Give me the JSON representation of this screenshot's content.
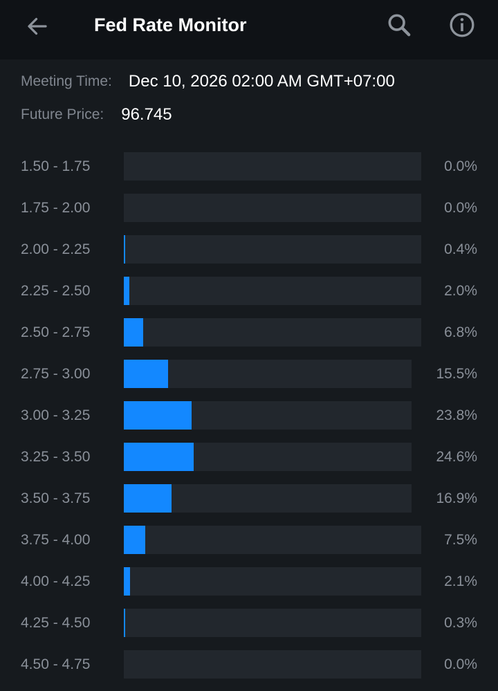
{
  "header": {
    "title": "Fed Rate Monitor",
    "back_icon": "arrow-left-icon",
    "search_icon": "search-icon",
    "info_icon": "info-icon"
  },
  "meeting": {
    "time_label": "Meeting Time:",
    "time_value": "Dec 10, 2026 02:00 AM GMT+07:00",
    "price_label": "Future Price:",
    "price_value": "96.745"
  },
  "colors": {
    "accent": "#1388ff",
    "background": "#161a1e",
    "header_background": "#0f1216",
    "track": "#22272d"
  },
  "chart_data": {
    "type": "bar",
    "categories": [
      "1.50 - 1.75",
      "1.75 - 2.00",
      "2.00 - 2.25",
      "2.25 - 2.50",
      "2.50 - 2.75",
      "2.75 - 3.00",
      "3.00 - 3.25",
      "3.25 - 3.50",
      "3.50 - 3.75",
      "3.75 - 4.00",
      "4.00 - 4.25",
      "4.25 - 4.50",
      "4.50 - 4.75"
    ],
    "values": [
      0.0,
      0.0,
      0.4,
      2.0,
      6.8,
      15.5,
      23.8,
      24.6,
      16.9,
      7.5,
      2.1,
      0.3,
      0.0
    ],
    "labels": [
      "0.0%",
      "0.0%",
      "0.4%",
      "2.0%",
      "6.8%",
      "15.5%",
      "23.8%",
      "24.6%",
      "16.9%",
      "7.5%",
      "2.1%",
      "0.3%",
      "0.0%"
    ],
    "ylim": [
      0,
      100
    ]
  }
}
